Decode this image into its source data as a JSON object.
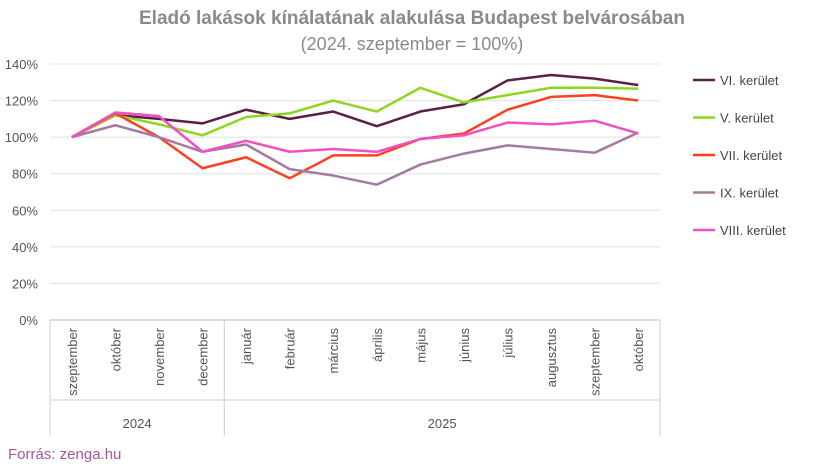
{
  "chart_data": {
    "type": "line",
    "title": "Eladó lakások kínálatának alakulása Budapest belvárosában",
    "subtitle": "(2024. szeptember = 100%)",
    "categories": [
      "szeptember",
      "október",
      "november",
      "december",
      "január",
      "február",
      "március",
      "április",
      "május",
      "június",
      "július",
      "augusztus",
      "szeptember",
      "október"
    ],
    "years": [
      {
        "label": "2024",
        "span": 4
      },
      {
        "label": "2025",
        "span": 10
      }
    ],
    "ylim": [
      0,
      140
    ],
    "yticks": [
      "0%",
      "20%",
      "40%",
      "60%",
      "80%",
      "100%",
      "120%",
      "140%"
    ],
    "grid": true,
    "legend_position": "right",
    "series": [
      {
        "name": "VI. kerület",
        "color": "#5a1f45",
        "values": [
          100,
          112,
          110,
          107.5,
          115,
          110,
          114,
          106,
          114,
          118,
          131,
          134,
          132,
          128.5
        ]
      },
      {
        "name": "V. kerület",
        "color": "#8fd61f",
        "values": [
          100,
          112,
          107,
          101,
          111,
          113,
          120,
          114,
          127,
          119,
          123,
          127,
          127,
          126.5
        ]
      },
      {
        "name": "VII. kerület",
        "color": "#ff4020",
        "values": [
          100,
          113,
          100,
          83,
          89,
          77.5,
          90,
          90,
          99,
          102,
          115,
          122,
          123,
          120
        ]
      },
      {
        "name": "IX. kerület",
        "color": "#a57aa0",
        "values": [
          100,
          106.5,
          100,
          92,
          96,
          82.5,
          79,
          74,
          85,
          91,
          95.5,
          93.5,
          91.5,
          102.5
        ]
      },
      {
        "name": "VIII. kerület",
        "color": "#f050c0",
        "values": [
          100,
          113.5,
          111.5,
          92,
          98,
          92,
          93.5,
          92,
          99,
          101,
          108,
          107,
          109,
          102
        ]
      }
    ]
  },
  "source": "Forrás: zenga.hu"
}
